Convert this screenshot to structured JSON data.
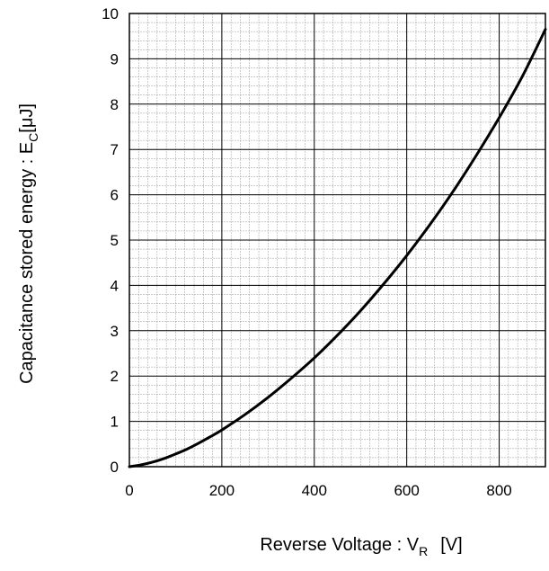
{
  "chart_data": {
    "type": "line",
    "title": "",
    "xlabel": {
      "prefix": "Reverse Voltage : V",
      "subscript": "R",
      "unit": "[V]"
    },
    "ylabel": {
      "prefix": "Capacitance stored energy : E",
      "subscript": "C",
      "unit": "[μJ]"
    },
    "xlim": [
      0,
      900
    ],
    "ylim": [
      0,
      10
    ],
    "x_ticks": [
      0,
      200,
      400,
      600,
      800
    ],
    "x_tick_labels": [
      "0",
      "200",
      "400",
      "600",
      "800"
    ],
    "y_ticks": [
      0,
      1,
      2,
      3,
      4,
      5,
      6,
      7,
      8,
      9,
      10
    ],
    "y_tick_labels": [
      "0",
      "1",
      "2",
      "3",
      "4",
      "5",
      "6",
      "7",
      "8",
      "9",
      "10"
    ],
    "grid": {
      "major": true,
      "minor": true
    },
    "series": [
      {
        "color": "#000000",
        "x": [
          0,
          25,
          50,
          75,
          100,
          125,
          150,
          175,
          200,
          250,
          300,
          350,
          400,
          450,
          500,
          550,
          600,
          650,
          700,
          750,
          800,
          850,
          900
        ],
        "y": [
          0,
          0.04,
          0.1,
          0.18,
          0.28,
          0.39,
          0.52,
          0.66,
          0.81,
          1.15,
          1.53,
          1.95,
          2.4,
          2.9,
          3.44,
          4.03,
          4.66,
          5.34,
          6.07,
          6.86,
          7.7,
          8.61,
          9.65
        ]
      }
    ]
  }
}
